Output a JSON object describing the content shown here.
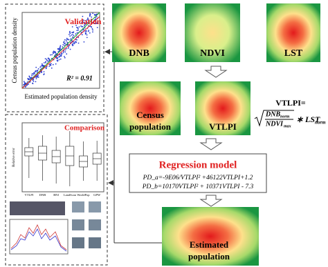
{
  "validation": {
    "title": "Validation",
    "r2": "R² = 0.91",
    "x_label": "Estimated population density",
    "y_label": "Census population density"
  },
  "comparison": {
    "title": "Comparison",
    "y_label": "Relative error",
    "categories": [
      "VTLPI",
      "DNB",
      "BNI",
      "LandScan",
      "WorldPop",
      "GPW"
    ]
  },
  "inputs": [
    "DNB",
    "NDVI",
    "LST"
  ],
  "intermediate": {
    "census": [
      "Census",
      "population"
    ],
    "vtlpi": "VTLPI"
  },
  "formula": {
    "lhs": "VTLPI=",
    "num": "DNB",
    "num_sub": "norm",
    "den": "NDVI",
    "den_sub": "max",
    "times": "∗ LST",
    "times_sub": "norm"
  },
  "regression": {
    "title": "Regression model",
    "eq_a": "PD_a=-9E06/VTLPI² +46122VTLPI+1.2",
    "eq_b": "PD_b=10170VTLPI² + 10371VTLPI - 7.3"
  },
  "output": [
    "Estimated",
    "population"
  ]
}
